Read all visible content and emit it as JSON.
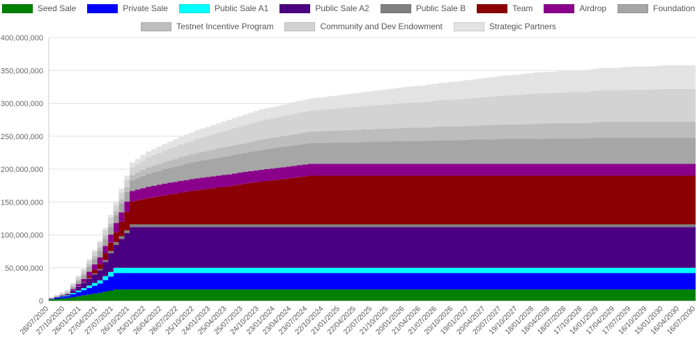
{
  "chart_data": {
    "type": "area",
    "stacked": true,
    "step": true,
    "title": "",
    "xlabel": "",
    "ylabel": "",
    "ylim": [
      0,
      400000000
    ],
    "y_tick_step": 50000000,
    "grid": true,
    "legend_position": "top",
    "legend_rows": [
      8,
      3
    ],
    "x": [
      "28/07/2020",
      "27/10/2020",
      "26/01/2021",
      "27/04/2021",
      "27/07/2021",
      "26/10/2021",
      "25/01/2022",
      "26/04/2022",
      "26/07/2022",
      "25/10/2022",
      "24/01/2023",
      "25/04/2023",
      "25/07/2023",
      "24/10/2023",
      "23/01/2024",
      "23/04/2024",
      "23/07/2024",
      "22/10/2024",
      "21/01/2025",
      "22/04/2025",
      "22/07/2025",
      "21/10/2025",
      "20/01/2026",
      "21/04/2026",
      "21/07/2026",
      "20/10/2026",
      "19/01/2027",
      "20/04/2027",
      "20/07/2027",
      "19/10/2027",
      "18/01/2028",
      "18/04/2028",
      "18/07/2028",
      "17/10/2028",
      "16/01/2029",
      "17/04/2029",
      "17/07/2029",
      "16/10/2029",
      "15/01/2030",
      "16/04/2030",
      "16/07/2030"
    ],
    "series": [
      {
        "name": "Seed Sale",
        "color": "#008000",
        "values": [
          2000000,
          4000000,
          8000000,
          12000000,
          17000000,
          17000000,
          17000000,
          17000000,
          17000000,
          17000000,
          17000000,
          17000000,
          17000000,
          17000000,
          17000000,
          17000000,
          17000000,
          17000000,
          17000000,
          17000000,
          17000000,
          17000000,
          17000000,
          17000000,
          17000000,
          17000000,
          17000000,
          17000000,
          17000000,
          17000000,
          17000000,
          17000000,
          17000000,
          17000000,
          17000000,
          17000000,
          17000000,
          17000000,
          17000000,
          17000000,
          17000000
        ]
      },
      {
        "name": "Private Sale",
        "color": "#0000ff",
        "values": [
          1000000,
          3000000,
          8000000,
          14000000,
          25000000,
          25000000,
          25000000,
          25000000,
          25000000,
          25000000,
          25000000,
          25000000,
          25000000,
          25000000,
          25000000,
          25000000,
          25000000,
          25000000,
          25000000,
          25000000,
          25000000,
          25000000,
          25000000,
          25000000,
          25000000,
          25000000,
          25000000,
          25000000,
          25000000,
          25000000,
          25000000,
          25000000,
          25000000,
          25000000,
          25000000,
          25000000,
          25000000,
          25000000,
          25000000,
          25000000,
          25000000
        ]
      },
      {
        "name": "Public Sale A1",
        "color": "#00ffff",
        "values": [
          0,
          1000000,
          3000000,
          5000000,
          8000000,
          8000000,
          8000000,
          8000000,
          8000000,
          8000000,
          8000000,
          8000000,
          8000000,
          8000000,
          8000000,
          8000000,
          8000000,
          8000000,
          8000000,
          8000000,
          8000000,
          8000000,
          8000000,
          8000000,
          8000000,
          8000000,
          8000000,
          8000000,
          8000000,
          8000000,
          8000000,
          8000000,
          8000000,
          8000000,
          8000000,
          8000000,
          8000000,
          8000000,
          8000000,
          8000000,
          8000000
        ]
      },
      {
        "name": "Public Sale A2",
        "color": "#4b0082",
        "values": [
          0,
          2000000,
          8000000,
          15000000,
          35000000,
          62000000,
          62000000,
          62000000,
          62000000,
          62000000,
          62000000,
          62000000,
          62000000,
          62000000,
          62000000,
          62000000,
          62000000,
          62000000,
          62000000,
          62000000,
          62000000,
          62000000,
          62000000,
          62000000,
          62000000,
          62000000,
          62000000,
          62000000,
          62000000,
          62000000,
          62000000,
          62000000,
          62000000,
          62000000,
          62000000,
          62000000,
          62000000,
          62000000,
          62000000,
          62000000,
          62000000
        ]
      },
      {
        "name": "Public Sale B",
        "color": "#808080",
        "values": [
          0,
          0,
          1000000,
          2000000,
          4000000,
          4000000,
          4000000,
          4000000,
          4000000,
          4000000,
          4000000,
          4000000,
          4000000,
          4000000,
          4000000,
          4000000,
          4000000,
          4000000,
          4000000,
          4000000,
          4000000,
          4000000,
          4000000,
          4000000,
          4000000,
          4000000,
          4000000,
          4000000,
          4000000,
          4000000,
          4000000,
          4000000,
          4000000,
          4000000,
          4000000,
          4000000,
          4000000,
          4000000,
          4000000,
          4000000,
          4000000
        ]
      },
      {
        "name": "Team",
        "color": "#8b0000",
        "values": [
          0,
          0,
          0,
          8000000,
          15000000,
          35000000,
          40000000,
          44000000,
          48000000,
          52000000,
          55000000,
          58000000,
          62000000,
          65000000,
          68000000,
          71000000,
          74000000,
          74000000,
          74000000,
          74000000,
          74000000,
          74000000,
          74000000,
          74000000,
          74000000,
          74000000,
          74000000,
          74000000,
          74000000,
          74000000,
          74000000,
          74000000,
          74000000,
          74000000,
          74000000,
          74000000,
          74000000,
          74000000,
          74000000,
          74000000,
          74000000
        ]
      },
      {
        "name": "Airdrop",
        "color": "#8b008b",
        "values": [
          0,
          0,
          5000000,
          10000000,
          14000000,
          16000000,
          17000000,
          18000000,
          18000000,
          18000000,
          18000000,
          18000000,
          18000000,
          18000000,
          18000000,
          18000000,
          18000000,
          18000000,
          18000000,
          18000000,
          18000000,
          18000000,
          18000000,
          18000000,
          18000000,
          18000000,
          18000000,
          18000000,
          18000000,
          18000000,
          18000000,
          18000000,
          18000000,
          18000000,
          18000000,
          18000000,
          18000000,
          18000000,
          18000000,
          18000000,
          18000000
        ]
      },
      {
        "name": "Foundation",
        "color": "#a6a6a6",
        "values": [
          1000000,
          2000000,
          6000000,
          10000000,
          12000000,
          16000000,
          20000000,
          22000000,
          24000000,
          26000000,
          27000000,
          28000000,
          29000000,
          30000000,
          31000000,
          31000000,
          32000000,
          32000000,
          33000000,
          33000000,
          34000000,
          34000000,
          35000000,
          35000000,
          36000000,
          36000000,
          37000000,
          37000000,
          38000000,
          38000000,
          38000000,
          39000000,
          39000000,
          39000000,
          40000000,
          40000000,
          40000000,
          40000000,
          40000000,
          40000000,
          40000000
        ]
      },
      {
        "name": "Testnet Incentive Program",
        "color": "#bdbdbd",
        "values": [
          0,
          1000000,
          3000000,
          5000000,
          6000000,
          8000000,
          10000000,
          11000000,
          12000000,
          13000000,
          14000000,
          15000000,
          15000000,
          16000000,
          16000000,
          17000000,
          17000000,
          18000000,
          18000000,
          19000000,
          19000000,
          20000000,
          20000000,
          20000000,
          21000000,
          21000000,
          21000000,
          22000000,
          22000000,
          22000000,
          23000000,
          23000000,
          23000000,
          23000000,
          24000000,
          24000000,
          24000000,
          24000000,
          24000000,
          24000000,
          24000000
        ]
      },
      {
        "name": "Community and Dev Endowment",
        "color": "#d3d3d3",
        "values": [
          1000000,
          2000000,
          5000000,
          7000000,
          9000000,
          12000000,
          15000000,
          17000000,
          19000000,
          21000000,
          23000000,
          25000000,
          27000000,
          29000000,
          30000000,
          31000000,
          32000000,
          33000000,
          34000000,
          35000000,
          36000000,
          37000000,
          38000000,
          39000000,
          40000000,
          41000000,
          42000000,
          43000000,
          44000000,
          45000000,
          46000000,
          46000000,
          47000000,
          47000000,
          48000000,
          48000000,
          49000000,
          49000000,
          50000000,
          50000000,
          50000000
        ]
      },
      {
        "name": "Strategic Partners",
        "color": "#e3e3e3",
        "values": [
          0,
          1000000,
          2000000,
          3000000,
          5000000,
          7000000,
          9000000,
          10000000,
          12000000,
          13000000,
          14000000,
          15000000,
          16000000,
          17000000,
          17000000,
          18000000,
          18000000,
          19000000,
          20000000,
          21000000,
          22000000,
          23000000,
          24000000,
          25000000,
          26000000,
          27000000,
          28000000,
          29000000,
          30000000,
          31000000,
          32000000,
          32000000,
          33000000,
          33000000,
          34000000,
          34000000,
          35000000,
          35000000,
          36000000,
          36000000,
          36000000
        ]
      }
    ]
  }
}
